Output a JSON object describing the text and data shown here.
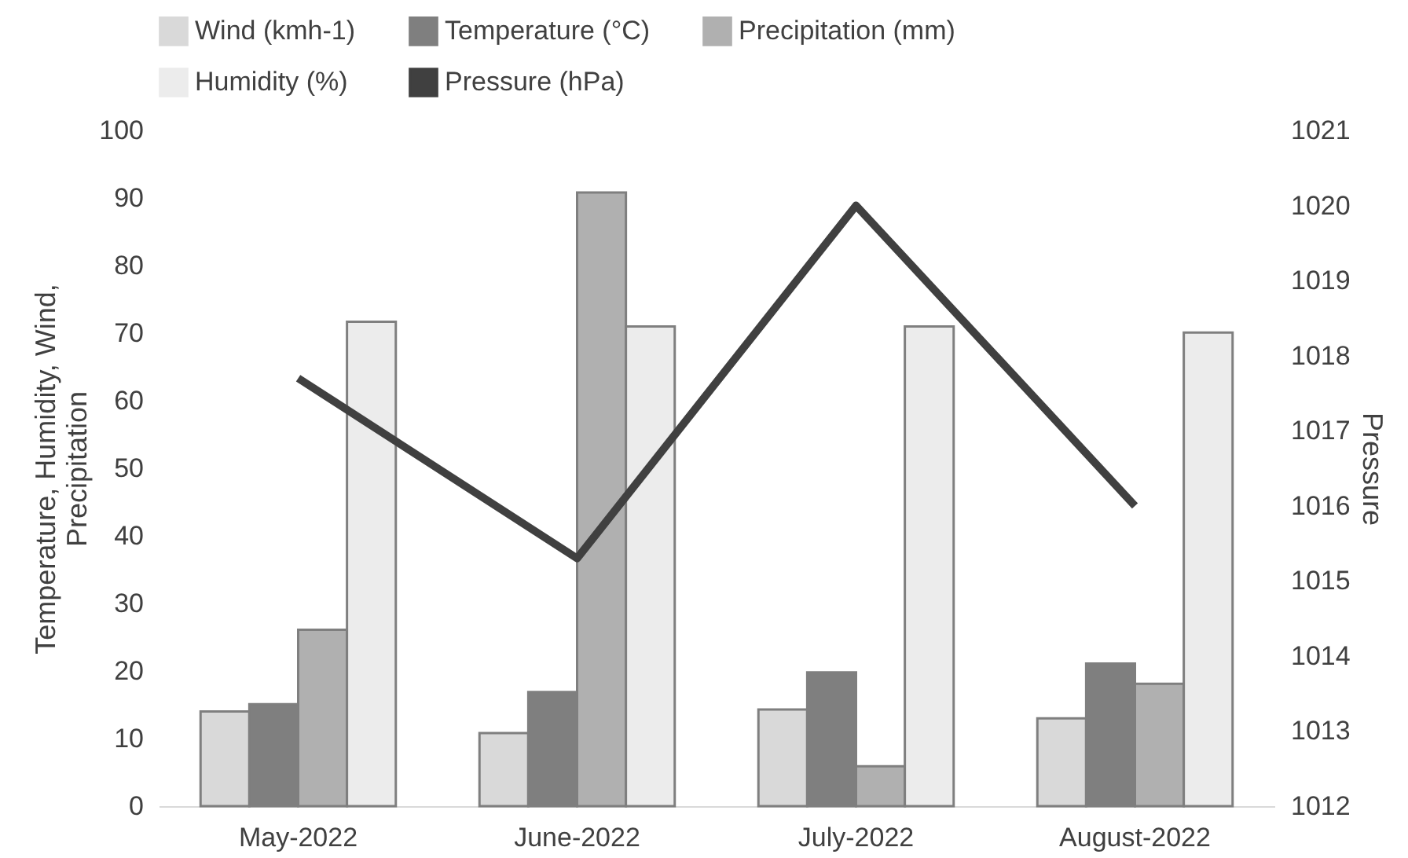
{
  "chart_data": {
    "type": "bar",
    "categories": [
      "May-2022",
      "June-2022",
      "July-2022",
      "August-2022"
    ],
    "ylabel": "Temperature, Humidity, Wind, Precipitation",
    "y2label": "Pressure",
    "ylim": [
      0,
      100
    ],
    "yticks": [
      0,
      10,
      20,
      30,
      40,
      50,
      60,
      70,
      80,
      90,
      100
    ],
    "y2lim": [
      1012,
      1021
    ],
    "y2ticks": [
      1012,
      1013,
      1014,
      1015,
      1016,
      1017,
      1018,
      1019,
      1020,
      1021
    ],
    "grid": false,
    "legend": "top",
    "series": [
      {
        "name": "Wind (kmh-1)",
        "color": "#d9d9d9",
        "values": [
          14.0,
          10.8,
          14.3,
          13.0
        ]
      },
      {
        "name": "Temperature (°C)",
        "color": "#7f7f7f",
        "values": [
          15.1,
          16.9,
          19.8,
          21.1
        ]
      },
      {
        "name": "Precipitation (mm)",
        "color": "#b0b0b0",
        "values": [
          26.1,
          90.8,
          5.9,
          18.1
        ]
      },
      {
        "name": "Humidity (%)",
        "color": "#ececec",
        "values": [
          71.7,
          71.0,
          71.0,
          70.1
        ]
      },
      {
        "name": "Pressure (hPa)",
        "type": "line",
        "axis": "y2",
        "color": "#404040",
        "values": [
          1017.7,
          1015.3,
          1020.0,
          1016.0
        ]
      }
    ]
  }
}
